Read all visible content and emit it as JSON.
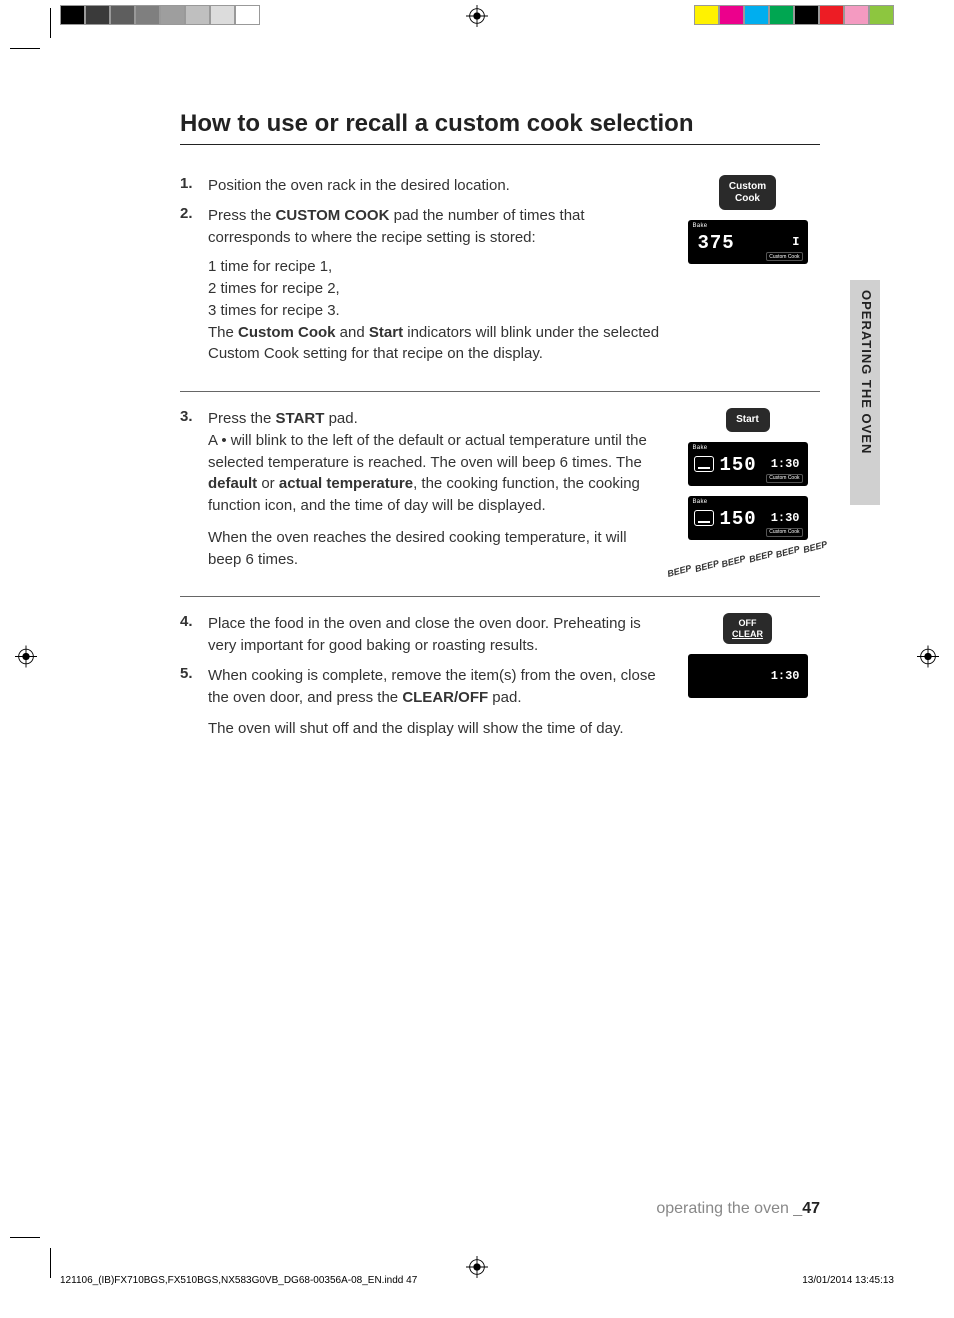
{
  "colorBar": {
    "left": [
      "#000000",
      "#3a3a3a",
      "#5e5e5e",
      "#7f7f7f",
      "#9e9e9e",
      "#bfbfbf",
      "#dcdcdc",
      "#ffffff"
    ],
    "right": [
      "#fff200",
      "#ec008c",
      "#00aeef",
      "#00a651",
      "#000000",
      "#ed1c24",
      "#f49ac1",
      "#8dc63f"
    ]
  },
  "title": "How to use or recall a custom cook selection",
  "sideTab": "OPERATING THE OVEN",
  "block1": {
    "step1": {
      "num": "1.",
      "text": "Position the oven rack in the desired location."
    },
    "step2": {
      "num": "2.",
      "lead_a": "Press the ",
      "bold_a": "CUSTOM COOK",
      "lead_b": " pad the number of times that corresponds to where the recipe setting is stored:",
      "sub1": "1 time for recipe 1,",
      "sub2": "2 times for recipe 2,",
      "sub3": "3 times for recipe 3.",
      "tail_a": "The ",
      "tail_bold1": "Custom Cook",
      "tail_b": " and ",
      "tail_bold2": "Start",
      "tail_c": " indicators will blink under the selected Custom Cook setting for that recipe on the display."
    },
    "illus": {
      "btn_line1": "Custom",
      "btn_line2": "Cook",
      "disp": {
        "bake": "Bake",
        "temp": "375",
        "clock": "I",
        "cc": "Custom Cook"
      }
    }
  },
  "block2": {
    "step3": {
      "num": "3.",
      "lead_a": "Press the ",
      "bold_a": "START",
      "lead_b": " pad.",
      "body_a": "A • will blink to the left of the default or actual temperature until the selected temperature is reached. The oven will beep 6 times. The ",
      "bold_b": "default",
      "body_b": " or ",
      "bold_c": "actual temperature",
      "body_c": ", the cooking function, the cooking function icon, and the time of day will be displayed.",
      "after": "When the oven reaches the desired cooking temperature, it will beep 6 times."
    },
    "illus": {
      "btn": "Start",
      "disp1": {
        "bake": "Bake",
        "temp": "150",
        "clock": "1:30",
        "cc": "Custom Cook"
      },
      "disp2": {
        "bake": "Bake",
        "temp": "150",
        "clock": "1:30",
        "cc": "Custom Cook"
      },
      "beep": "BEEP"
    }
  },
  "block3": {
    "step4": {
      "num": "4.",
      "text": "Place the food in the oven and close the oven door. Preheating is very important for good baking or roasting results."
    },
    "step5": {
      "num": "5.",
      "a": "When cooking is complete, remove the item(s) from the oven, close the oven door, and press the ",
      "bold": "CLEAR/OFF",
      "b": " pad.",
      "after": "The oven will shut off and the display will show the time of day."
    },
    "illus": {
      "btn_line1": "OFF",
      "btn_line2": "CLEAR",
      "disp": {
        "clock": "1:30"
      }
    }
  },
  "footer": {
    "label": "operating the oven _",
    "page": "47",
    "file": "121106_(IB)FX710BGS,FX510BGS,NX583G0VB_DG68-00356A-08_EN.indd   47",
    "datetime": "13/01/2014   13:45:13"
  }
}
